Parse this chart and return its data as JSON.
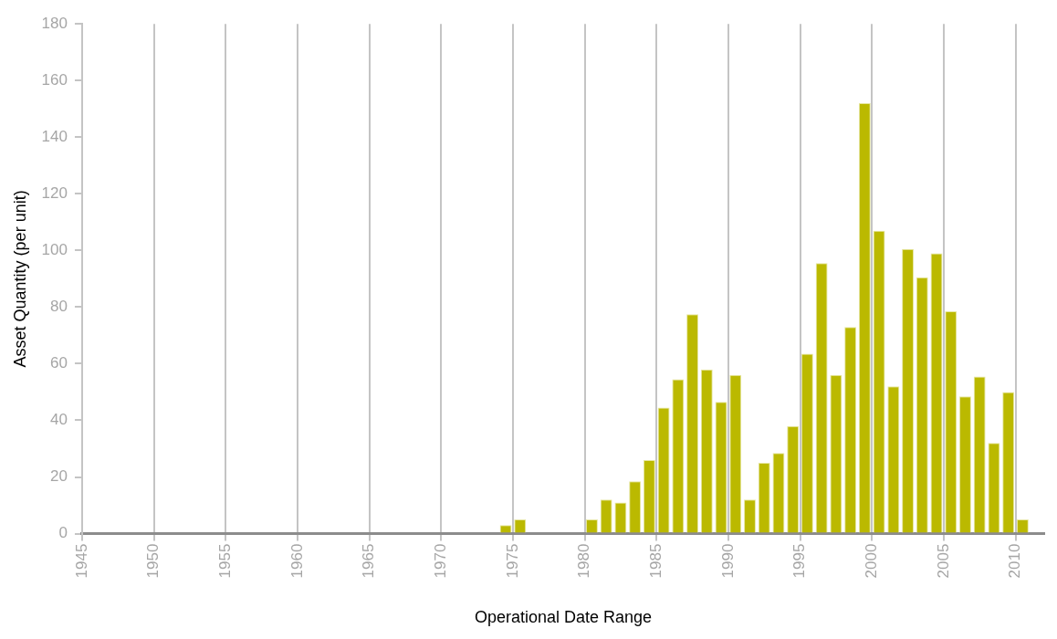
{
  "chart_data": {
    "type": "histogram",
    "xlabel": "Operational Date Range",
    "ylabel": "Asset Quantity (per unit)",
    "bins": [
      1974,
      1975,
      1976,
      1977,
      1978,
      1979,
      1980,
      1981,
      1982,
      1983,
      1984,
      1985,
      1986,
      1987,
      1988,
      1989,
      1990,
      1991,
      1992,
      1993,
      1994,
      1995,
      1996,
      1997,
      1998,
      1999,
      2000,
      2001,
      2002,
      2003,
      2004,
      2005,
      2006,
      2007,
      2008,
      2009,
      2010,
      2011
    ],
    "values": [
      3,
      5,
      0,
      0,
      0,
      0,
      5,
      12,
      11,
      18.5,
      26,
      44.5,
      54.5,
      77.5,
      58,
      46.5,
      56,
      12,
      25,
      28.5,
      38,
      63.5,
      95.5,
      56,
      73,
      152,
      107,
      52,
      100.5,
      90.5,
      99,
      78.5,
      48.5,
      55.5,
      32,
      50,
      5
    ],
    "color": "#bbb900",
    "xlim": [
      1945,
      2012
    ],
    "xticks": [
      1945,
      1950,
      1955,
      1960,
      1965,
      1970,
      1975,
      1980,
      1985,
      1990,
      1995,
      2000,
      2005,
      2010
    ],
    "ylim": [
      0,
      180
    ],
    "yticks": [
      0,
      20,
      40,
      60,
      80,
      100,
      120,
      140,
      160,
      180
    ],
    "grid": "x"
  }
}
